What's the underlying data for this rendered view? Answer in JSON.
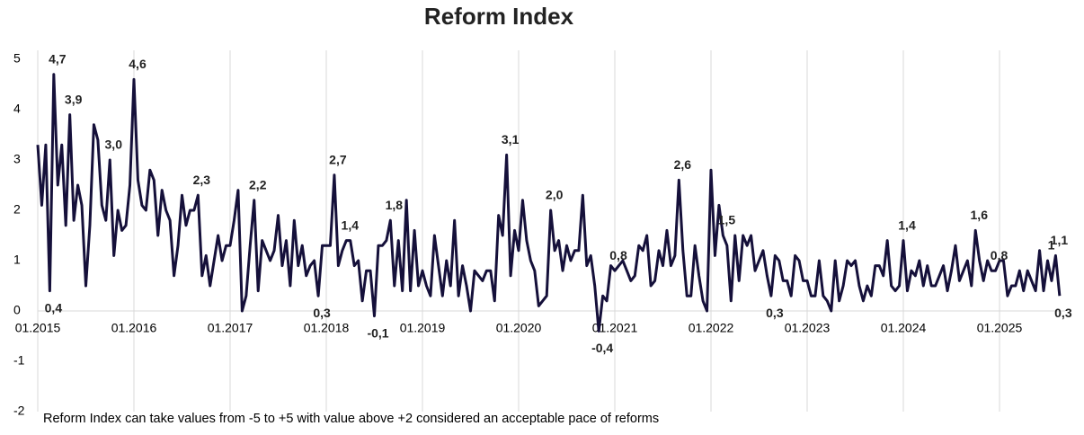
{
  "chart_data": {
    "type": "line",
    "title": "Reform Index",
    "note": "Reform Index can take values from -5 to +5 with value above +2 considered an acceptable pace of reforms",
    "categories": [
      "01.2015",
      null,
      null,
      null,
      null,
      null,
      null,
      null,
      null,
      null,
      null,
      null,
      null,
      null,
      null,
      null,
      null,
      null,
      null,
      null,
      null,
      null,
      null,
      null,
      "01.2016",
      null,
      null,
      null,
      null,
      null,
      null,
      null,
      null,
      null,
      null,
      null,
      null,
      null,
      null,
      null,
      null,
      null,
      null,
      null,
      null,
      null,
      null,
      null,
      "01.2017",
      null,
      null,
      null,
      null,
      null,
      null,
      null,
      null,
      null,
      null,
      null,
      null,
      null,
      null,
      null,
      null,
      null,
      null,
      null,
      null,
      null,
      null,
      null,
      "01.2018",
      null,
      null,
      null,
      null,
      null,
      null,
      null,
      null,
      null,
      null,
      null,
      null,
      null,
      null,
      null,
      null,
      null,
      null,
      null,
      null,
      null,
      null,
      null,
      "01.2019",
      null,
      null,
      null,
      null,
      null,
      null,
      null,
      null,
      null,
      null,
      null,
      null,
      null,
      null,
      null,
      null,
      null,
      null,
      null,
      null,
      null,
      null,
      null,
      "01.2020",
      null,
      null,
      null,
      null,
      null,
      null,
      null,
      null,
      null,
      null,
      null,
      null,
      null,
      null,
      null,
      null,
      null,
      null,
      null,
      null,
      null,
      null,
      null,
      "01.2021",
      null,
      null,
      null,
      null,
      null,
      null,
      null,
      null,
      null,
      null,
      null,
      null,
      null,
      null,
      null,
      null,
      null,
      null,
      null,
      null,
      null,
      null,
      null,
      "01.2022",
      null,
      null,
      null,
      null,
      null,
      null,
      null,
      null,
      null,
      null,
      null,
      null,
      null,
      null,
      null,
      null,
      null,
      null,
      null,
      null,
      null,
      null,
      null,
      "01.2023",
      null,
      null,
      null,
      null,
      null,
      null,
      null,
      null,
      null,
      null,
      null,
      null,
      null,
      null,
      null,
      null,
      null,
      null,
      null,
      null,
      null,
      null,
      null,
      "01.2024",
      null,
      null,
      null,
      null,
      null,
      null,
      null,
      null,
      null,
      null,
      null,
      null,
      null,
      null,
      null,
      null,
      null,
      null,
      null,
      null,
      null,
      null,
      null,
      "01.2025",
      null,
      null,
      null,
      null,
      null,
      null,
      null,
      null,
      null,
      null,
      null,
      null,
      null,
      null,
      null
    ],
    "values": [
      3.3,
      2.1,
      3.3,
      0.4,
      4.7,
      2.5,
      3.3,
      1.7,
      3.9,
      1.8,
      2.5,
      2.1,
      0.5,
      1.7,
      3.7,
      3.4,
      2.1,
      1.8,
      3.0,
      1.1,
      2.0,
      1.6,
      1.7,
      2.5,
      4.6,
      2.6,
      2.1,
      2.0,
      2.8,
      2.6,
      1.5,
      2.4,
      2.0,
      1.8,
      0.7,
      1.3,
      2.3,
      1.7,
      2.0,
      2.0,
      2.3,
      0.7,
      1.1,
      0.5,
      1.0,
      1.5,
      1.0,
      1.3,
      1.3,
      1.8,
      2.4,
      0.0,
      0.3,
      1.3,
      2.2,
      0.4,
      1.4,
      1.2,
      1.0,
      1.2,
      1.9,
      0.9,
      1.4,
      0.5,
      1.8,
      0.9,
      1.3,
      0.7,
      0.9,
      1.0,
      0.3,
      1.3,
      1.3,
      1.3,
      2.7,
      0.9,
      1.2,
      1.4,
      1.4,
      0.9,
      1.0,
      0.2,
      0.8,
      0.8,
      -0.1,
      1.3,
      1.3,
      1.4,
      1.8,
      0.5,
      1.4,
      0.4,
      2.2,
      0.4,
      1.6,
      0.5,
      0.8,
      0.5,
      0.3,
      1.5,
      0.9,
      0.3,
      1.0,
      0.5,
      1.8,
      0.3,
      0.9,
      0.5,
      0.0,
      0.8,
      0.7,
      0.6,
      0.8,
      0.8,
      0.2,
      1.9,
      1.5,
      3.1,
      0.7,
      1.6,
      1.2,
      2.2,
      1.4,
      1.0,
      0.8,
      0.1,
      0.2,
      0.3,
      2.0,
      1.2,
      1.4,
      0.8,
      1.3,
      1.0,
      1.2,
      1.2,
      2.3,
      0.9,
      1.1,
      0.5,
      -0.4,
      0.3,
      0.2,
      0.9,
      0.8,
      0.9,
      1.0,
      0.8,
      0.6,
      0.7,
      1.3,
      1.2,
      1.5,
      0.5,
      0.6,
      1.2,
      0.9,
      1.6,
      0.9,
      1.1,
      2.6,
      1.2,
      0.3,
      0.3,
      1.3,
      0.7,
      0.2,
      0.0,
      2.8,
      1.1,
      2.1,
      1.5,
      1.3,
      0.2,
      1.5,
      0.6,
      1.5,
      1.3,
      1.5,
      0.8,
      1.0,
      1.2,
      0.7,
      0.3,
      1.1,
      1.0,
      0.6,
      0.6,
      0.3,
      1.1,
      1.0,
      0.6,
      0.6,
      0.3,
      0.3,
      1.0,
      0.3,
      0.2,
      0.0,
      1.0,
      0.2,
      0.5,
      1.0,
      0.9,
      1.0,
      0.5,
      0.2,
      0.5,
      0.3,
      0.9,
      0.9,
      0.7,
      1.4,
      0.5,
      0.4,
      0.5,
      1.4,
      0.4,
      0.8,
      0.7,
      1.0,
      0.5,
      0.9,
      0.5,
      0.5,
      0.7,
      0.9,
      0.4,
      0.8,
      1.3,
      0.6,
      0.8,
      1.0,
      0.5,
      1.6,
      1.0,
      0.6,
      1.0,
      0.8,
      0.8,
      1.0,
      1.0,
      0.3,
      0.5,
      0.5,
      0.8,
      0.4,
      0.8,
      0.6,
      0.4,
      1.2,
      0.4,
      1.0,
      0.6,
      1.1,
      0.3
    ],
    "value_labels": [
      null,
      null,
      null,
      "0,4",
      "4,7",
      null,
      null,
      null,
      "3,9",
      null,
      null,
      null,
      null,
      null,
      null,
      null,
      null,
      null,
      "3,0",
      null,
      null,
      null,
      null,
      null,
      "4,6",
      null,
      null,
      null,
      null,
      null,
      null,
      null,
      null,
      null,
      null,
      null,
      null,
      null,
      null,
      null,
      "2,3",
      null,
      null,
      null,
      null,
      null,
      null,
      null,
      null,
      null,
      null,
      null,
      null,
      null,
      "2,2",
      null,
      null,
      null,
      null,
      null,
      null,
      null,
      null,
      null,
      null,
      null,
      null,
      null,
      null,
      null,
      "0,3",
      null,
      null,
      null,
      "2,7",
      null,
      null,
      "1,4",
      null,
      null,
      null,
      null,
      null,
      null,
      "-0,1",
      null,
      null,
      null,
      "1,8",
      null,
      null,
      null,
      null,
      null,
      null,
      null,
      null,
      null,
      null,
      null,
      null,
      null,
      null,
      null,
      null,
      null,
      null,
      null,
      null,
      null,
      null,
      null,
      null,
      null,
      null,
      null,
      null,
      "3,1",
      null,
      null,
      null,
      null,
      null,
      null,
      null,
      null,
      null,
      null,
      "2,0",
      null,
      null,
      null,
      null,
      null,
      null,
      null,
      null,
      null,
      null,
      null,
      "-0,4",
      null,
      null,
      null,
      "0,8",
      null,
      null,
      null,
      null,
      null,
      null,
      null,
      null,
      null,
      null,
      null,
      null,
      null,
      null,
      null,
      "2,6",
      null,
      null,
      null,
      null,
      null,
      null,
      null,
      null,
      null,
      null,
      "1,5",
      null,
      null,
      null,
      null,
      null,
      null,
      null,
      null,
      null,
      null,
      null,
      "0,3",
      null,
      null,
      null,
      null,
      null,
      null,
      null,
      null,
      null,
      null,
      null,
      null,
      null,
      null,
      null,
      null,
      null,
      null,
      null,
      null,
      null,
      null,
      null,
      null,
      null,
      null,
      null,
      null,
      null,
      null,
      null,
      null,
      "1,4",
      null,
      null,
      null,
      null,
      null,
      null,
      null,
      null,
      null,
      null,
      null,
      null,
      null,
      null,
      null,
      null,
      null,
      "1,6",
      null,
      null,
      null,
      null,
      "0,8",
      null,
      null,
      null,
      null,
      null,
      null,
      null,
      null,
      null,
      null,
      null,
      null,
      "1",
      null,
      "1,1",
      "0,3"
    ],
    "color": "#15103a",
    "ylim": [
      -2,
      5
    ],
    "yticks": [
      -2,
      -1,
      0,
      1,
      2,
      3,
      4,
      5
    ],
    "grid": true
  }
}
